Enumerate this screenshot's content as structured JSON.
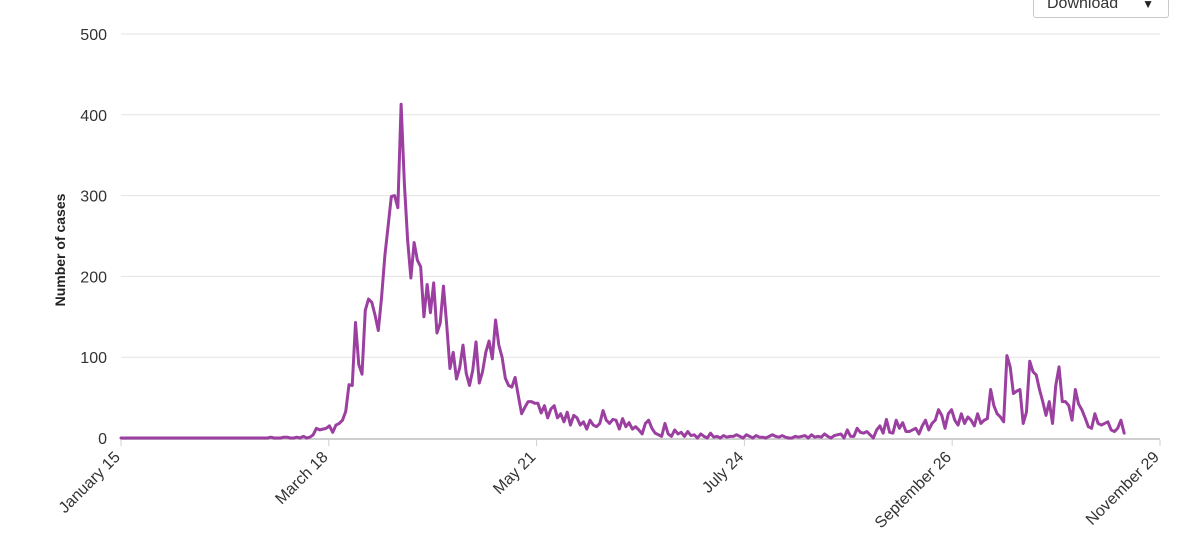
{
  "download": {
    "label": "Download",
    "icon": "chevron-down-icon"
  },
  "chart_data": {
    "type": "line",
    "xlabel": "",
    "ylabel": "Number of cases",
    "ylim": [
      0,
      500
    ],
    "yticks": [
      0,
      100,
      200,
      300,
      400,
      500
    ],
    "xtick_labels": [
      "January 15",
      "March 18",
      "May 21",
      "July 24",
      "September 26",
      "November 29"
    ],
    "xrange": [
      "2020-01-15",
      "2020-11-29"
    ],
    "grid": true,
    "line_color": "#9b3fa0",
    "series": [
      {
        "name": "",
        "start_date": "2020-01-15",
        "values": [
          0,
          0,
          0,
          0,
          0,
          0,
          0,
          0,
          0,
          0,
          0,
          0,
          0,
          0,
          0,
          0,
          0,
          0,
          0,
          0,
          0,
          0,
          0,
          0,
          0,
          0,
          0,
          0,
          0,
          0,
          0,
          0,
          0,
          0,
          0,
          0,
          0,
          0,
          0,
          0,
          0,
          0,
          0,
          0,
          0,
          0,
          1,
          0,
          0,
          0,
          1,
          1,
          0,
          0,
          1,
          0,
          2,
          0,
          1,
          4,
          12,
          10,
          11,
          12,
          15,
          7,
          16,
          18,
          22,
          33,
          66,
          65,
          143,
          91,
          79,
          158,
          172,
          168,
          152,
          133,
          174,
          225,
          262,
          299,
          300,
          285,
          413,
          315,
          245,
          198,
          242,
          220,
          212,
          150,
          190,
          155,
          192,
          130,
          142,
          188,
          140,
          86,
          106,
          73,
          87,
          115,
          80,
          65,
          84,
          119,
          68,
          82,
          106,
          120,
          98,
          146,
          115,
          100,
          74,
          65,
          63,
          75,
          52,
          30,
          38,
          45,
          45,
          43,
          43,
          31,
          40,
          25,
          36,
          40,
          25,
          30,
          20,
          32,
          16,
          28,
          25,
          16,
          20,
          11,
          22,
          16,
          14,
          18,
          34,
          22,
          18,
          23,
          22,
          11,
          24,
          14,
          19,
          11,
          14,
          10,
          5,
          18,
          22,
          12,
          6,
          4,
          2,
          18,
          5,
          2,
          10,
          5,
          7,
          2,
          8,
          3,
          4,
          0,
          5,
          2,
          0,
          6,
          1,
          2,
          0,
          3,
          1,
          2,
          2,
          4,
          2,
          0,
          4,
          2,
          0,
          3,
          1,
          1,
          0,
          2,
          4,
          2,
          1,
          3,
          1,
          0,
          0,
          2,
          1,
          2,
          3,
          0,
          4,
          1,
          2,
          1,
          5,
          2,
          0,
          3,
          4,
          5,
          0,
          10,
          2,
          2,
          12,
          7,
          6,
          8,
          4,
          0,
          10,
          15,
          6,
          23,
          7,
          6,
          22,
          12,
          19,
          8,
          8,
          10,
          12,
          5,
          15,
          22,
          10,
          18,
          22,
          35,
          28,
          12,
          30,
          35,
          22,
          16,
          30,
          18,
          26,
          22,
          15,
          30,
          18,
          22,
          24,
          60,
          40,
          30,
          26,
          20,
          102,
          88,
          55,
          58,
          60,
          18,
          32,
          95,
          82,
          78,
          60,
          45,
          28,
          45,
          18,
          65,
          88,
          45,
          45,
          40,
          22,
          60,
          42,
          35,
          25,
          14,
          12,
          30,
          18,
          16,
          18,
          20,
          10,
          8,
          12,
          22,
          6
        ]
      }
    ]
  }
}
